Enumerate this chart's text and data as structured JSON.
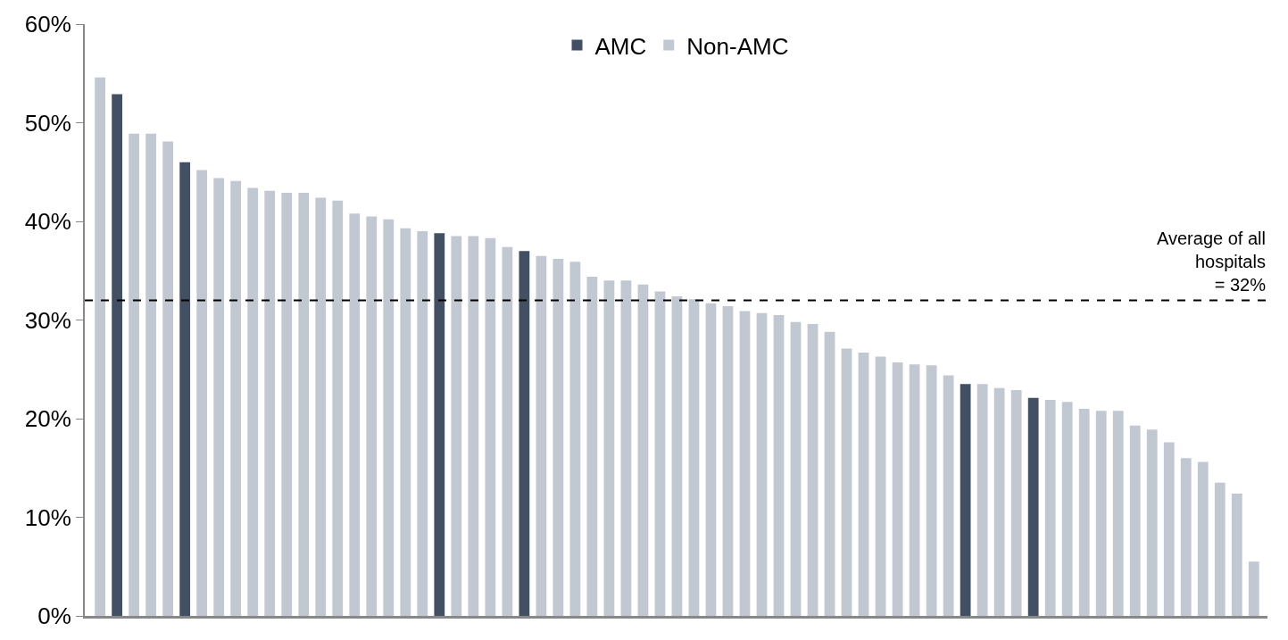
{
  "chart_data": {
    "type": "bar",
    "categories": [
      null,
      null,
      null,
      null,
      null,
      null,
      null,
      null,
      null,
      null,
      null,
      null,
      null,
      null,
      null,
      null,
      null,
      null,
      null,
      null,
      null,
      null,
      null,
      null,
      null,
      null,
      null,
      null,
      null,
      null,
      null,
      null,
      null,
      null,
      null,
      null,
      null,
      null,
      null,
      null,
      null,
      null,
      null,
      null,
      null,
      null,
      null,
      null,
      null,
      null,
      null,
      null,
      null,
      null,
      null,
      null,
      null,
      null,
      null,
      null,
      null,
      null,
      null,
      null,
      null,
      null,
      null,
      null,
      null
    ],
    "series": [
      {
        "name": "AMC",
        "color": "#434f63",
        "values": [
          null,
          52.9,
          null,
          null,
          null,
          46.0,
          null,
          null,
          null,
          null,
          null,
          null,
          null,
          null,
          null,
          null,
          null,
          null,
          null,
          null,
          38.8,
          null,
          null,
          null,
          null,
          37.0,
          null,
          null,
          null,
          null,
          null,
          null,
          null,
          null,
          null,
          null,
          null,
          null,
          null,
          null,
          null,
          null,
          null,
          null,
          null,
          null,
          null,
          null,
          null,
          null,
          null,
          23.5,
          null,
          null,
          null,
          22.1,
          null,
          null,
          null,
          null,
          null,
          null,
          null,
          null,
          null,
          null,
          null,
          null,
          null
        ]
      },
      {
        "name": "Non-AMC",
        "color": "#c1c8d1",
        "values": [
          54.6,
          null,
          48.9,
          48.9,
          48.1,
          null,
          45.2,
          44.4,
          44.1,
          43.4,
          43.1,
          42.9,
          42.9,
          42.4,
          42.1,
          40.8,
          40.5,
          40.2,
          39.3,
          39.0,
          null,
          38.5,
          38.5,
          38.3,
          37.4,
          null,
          36.5,
          36.2,
          35.9,
          34.4,
          34.0,
          34.0,
          33.6,
          32.9,
          32.4,
          32.1,
          31.7,
          31.4,
          30.9,
          30.7,
          30.5,
          29.8,
          29.6,
          28.8,
          27.1,
          26.7,
          26.3,
          25.7,
          25.5,
          25.4,
          24.4,
          null,
          23.5,
          23.1,
          22.9,
          null,
          21.9,
          21.7,
          21.0,
          20.8,
          20.8,
          19.3,
          18.9,
          17.6,
          16.0,
          15.6,
          13.5,
          12.4,
          5.5
        ]
      }
    ],
    "ylim": [
      0,
      60
    ],
    "yticks": [
      {
        "value": 0,
        "label": "0%"
      },
      {
        "value": 10,
        "label": "10%"
      },
      {
        "value": 20,
        "label": "20%"
      },
      {
        "value": 30,
        "label": "30%"
      },
      {
        "value": 40,
        "label": "40%"
      },
      {
        "value": 50,
        "label": "50%"
      },
      {
        "value": 60,
        "label": "60%"
      }
    ],
    "ref_lines": [
      {
        "axis": "y",
        "value": 32,
        "label": "Average of all\nhospitals\n= 32%",
        "color": "#000000",
        "line_style": "dashed"
      }
    ],
    "legend": "top"
  }
}
